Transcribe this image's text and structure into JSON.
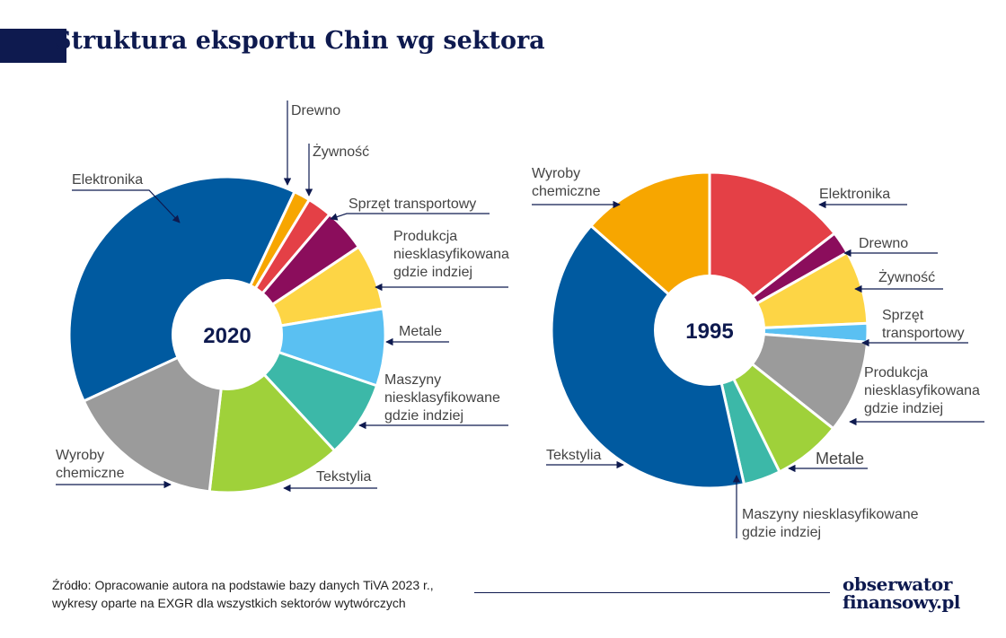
{
  "header": {
    "title": "Struktura eksportu Chin wg sektora",
    "accent_color": "#0e1a4f"
  },
  "chart_data": [
    {
      "type": "pie",
      "variant": "donut",
      "center_label": "2020",
      "slices": [
        {
          "label": "Elektronika",
          "value": 37.0,
          "color": "#005aa0"
        },
        {
          "label": "Drewno",
          "value": 1.6,
          "color": "#f7a600"
        },
        {
          "label": "Żywność",
          "value": 2.4,
          "color": "#e44046"
        },
        {
          "label": "Sprzęt transportowy",
          "value": 4.2,
          "color": "#8b0d5c"
        },
        {
          "label": "Produkcja niesklasyfikowana gdzie indziej",
          "value": 6.4,
          "color": "#fdd545"
        },
        {
          "label": "Metale",
          "value": 7.5,
          "color": "#5ac0f2"
        },
        {
          "label": "Maszyny niesklasyfikowane gdzie indziej",
          "value": 7.5,
          "color": "#3cb8a8"
        },
        {
          "label": "Tekstylia",
          "value": 13.0,
          "color": "#9fd13a"
        },
        {
          "label": "Wyroby chemiczne",
          "value": 15.5,
          "color": "#9b9b9b"
        }
      ]
    },
    {
      "type": "pie",
      "variant": "donut",
      "center_label": "1995",
      "slices": [
        {
          "label": "Elektronika",
          "value": 14.5,
          "color": "#e44046"
        },
        {
          "label": "Drewno",
          "value": 2.3,
          "color": "#8b0d5c"
        },
        {
          "label": "Żywność",
          "value": 7.5,
          "color": "#fdd545"
        },
        {
          "label": "Sprzęt transportowy",
          "value": 1.9,
          "color": "#5ac0f2"
        },
        {
          "label": "Produkcja niesklasyfikowana gdzie indziej",
          "value": 9.5,
          "color": "#9b9b9b"
        },
        {
          "label": "Metale",
          "value": 7.0,
          "color": "#9fd13a"
        },
        {
          "label": "Maszyny niesklasyfikowane gdzie indziej",
          "value": 3.8,
          "color": "#3cb8a8"
        },
        {
          "label": "Tekstylia",
          "value": 40.0,
          "color": "#005aa0"
        },
        {
          "label": "Wyroby chemiczne",
          "value": 13.5,
          "color": "#f7a600"
        }
      ]
    }
  ],
  "labels_2020": {
    "elektronika": "Elektronika",
    "drewno": "Drewno",
    "zywnosc": "Żywność",
    "sprzet": "Sprzęt transportowy",
    "produkcja": [
      "Produkcja",
      "niesklasyfikowana",
      "gdzie indziej"
    ],
    "metale": "Metale",
    "maszyny": [
      "Maszyny",
      "niesklasyfikowane",
      "gdzie indziej"
    ],
    "tekstylia": "Tekstylia",
    "wyroby": [
      "Wyroby",
      "chemiczne"
    ]
  },
  "labels_1995": {
    "wyroby": [
      "Wyroby",
      "chemiczne"
    ],
    "elektronika": "Elektronika",
    "drewno": "Drewno",
    "zywnosc": "Żywność",
    "sprzet": [
      "Sprzęt",
      "transportowy"
    ],
    "produkcja": [
      "Produkcja",
      "niesklasyfikowana",
      "gdzie indziej"
    ],
    "metale": "Metale",
    "maszyny": [
      "Maszyny niesklasyfikowane",
      "gdzie indziej"
    ],
    "tekstylia": "Tekstylia"
  },
  "footer": {
    "source_line1": "Źródło: Opracowanie autora na podstawie bazy danych TiVA 2023 r.,",
    "source_line2": "wykresy oparte na EXGR dla wszystkich sektorów wytwórczych",
    "logo_line1": "obserwator",
    "logo_line2": "finansowy.pl"
  }
}
